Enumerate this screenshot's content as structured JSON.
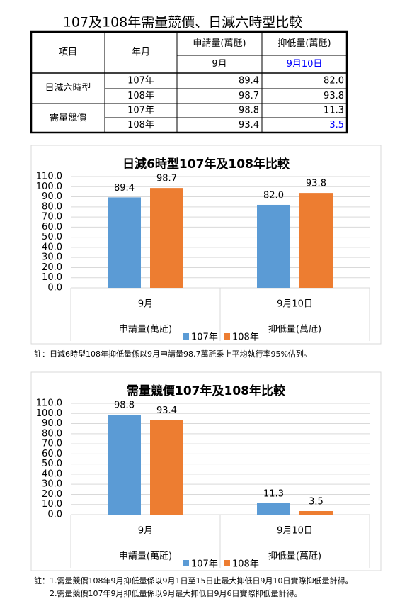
{
  "table": {
    "title": "107及108年需量競價、日減六時型比較",
    "header": [
      "項目",
      "年月",
      "申請量(萬瓩)",
      "抑低量(萬瓩)"
    ],
    "subheader": [
      "9月",
      "9月10日"
    ],
    "groups": [
      {
        "label": "日減六時型",
        "rows": [
          [
            "107年",
            "89.4",
            "82.0"
          ],
          [
            "108年",
            "98.7",
            "93.8"
          ]
        ]
      },
      {
        "label": "需量競價",
        "rows": [
          [
            "107年",
            "98.8",
            "11.3"
          ],
          [
            "108年",
            "93.4",
            "3.5"
          ]
        ]
      }
    ]
  },
  "chart_data": [
    {
      "type": "bar",
      "title": "日減6時型107年及108年比較",
      "categories": [
        "9月",
        "9月10日"
      ],
      "category_groups": [
        "申請量(萬瓩)",
        "抑低量(萬瓩)"
      ],
      "series": [
        {
          "name": "107年",
          "color": "#5b9bd5",
          "values": [
            89.4,
            82.0
          ],
          "value_labels": [
            "89.4",
            "82.0"
          ]
        },
        {
          "name": "108年",
          "color": "#ed7d31",
          "values": [
            98.7,
            93.8
          ],
          "value_labels": [
            "98.7",
            "93.8"
          ]
        }
      ],
      "ylim": [
        0,
        110
      ],
      "yticks": [
        {
          "value": 0,
          "label": "0.0"
        },
        {
          "value": 10,
          "label": "10.0"
        },
        {
          "value": 20,
          "label": "20.0"
        },
        {
          "value": 30,
          "label": "30.0"
        },
        {
          "value": 40,
          "label": "40.0"
        },
        {
          "value": 50,
          "label": "50.0"
        },
        {
          "value": 60,
          "label": "60.0"
        },
        {
          "value": 70,
          "label": "70.0"
        },
        {
          "value": 80,
          "label": "80.0"
        },
        {
          "value": 90,
          "label": "90.0"
        },
        {
          "value": 100,
          "label": "100.0"
        },
        {
          "value": 110,
          "label": "110.0"
        }
      ],
      "grid": true,
      "notes": [
        "註：日減6時型108年抑低量係以9月申請量98.7萬瓩乘上平均執行率95%估列。"
      ]
    },
    {
      "type": "bar",
      "title": "需量競價107年及108年比較",
      "categories": [
        "9月",
        "9月10日"
      ],
      "category_groups": [
        "申請量(萬瓩)",
        "抑低量(萬瓩)"
      ],
      "series": [
        {
          "name": "107年",
          "color": "#5b9bd5",
          "values": [
            98.8,
            11.3
          ],
          "value_labels": [
            "98.8",
            "11.3"
          ]
        },
        {
          "name": "108年",
          "color": "#ed7d31",
          "values": [
            93.4,
            3.5
          ],
          "value_labels": [
            "93.4",
            "3.5"
          ]
        }
      ],
      "ylim": [
        0,
        110
      ],
      "yticks": [
        {
          "value": 0,
          "label": "0.0"
        },
        {
          "value": 10,
          "label": "10.0"
        },
        {
          "value": 20,
          "label": "20.0"
        },
        {
          "value": 30,
          "label": "30.0"
        },
        {
          "value": 40,
          "label": "40.0"
        },
        {
          "value": 50,
          "label": "50.0"
        },
        {
          "value": 60,
          "label": "60.0"
        },
        {
          "value": 70,
          "label": "70.0"
        },
        {
          "value": 80,
          "label": "80.0"
        },
        {
          "value": 90,
          "label": "90.0"
        },
        {
          "value": 100,
          "label": "100.0"
        },
        {
          "value": 110,
          "label": "110.0"
        }
      ],
      "grid": true,
      "notes": [
        "註：1.需量競價108年9月抑低量係以9月1日至15日止最大抑低日9月10日實際抑低量計得。",
        "2.需量競價107年9月抑低量係以9月最大抑低日9月6日實際抑低量計得。"
      ]
    }
  ]
}
